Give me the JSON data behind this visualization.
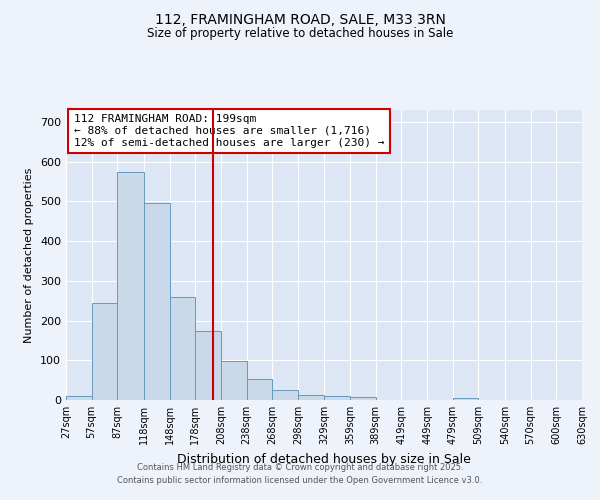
{
  "title_line1": "112, FRAMINGHAM ROAD, SALE, M33 3RN",
  "title_line2": "Size of property relative to detached houses in Sale",
  "xlabel": "Distribution of detached houses by size in Sale",
  "ylabel": "Number of detached properties",
  "bin_edges": [
    27,
    57,
    87,
    118,
    148,
    178,
    208,
    238,
    268,
    298,
    329,
    359,
    389,
    419,
    449,
    479,
    509,
    540,
    570,
    600,
    630
  ],
  "bar_heights": [
    10,
    243,
    575,
    497,
    260,
    173,
    97,
    52,
    25,
    12,
    10,
    7,
    0,
    0,
    0,
    5,
    0,
    0,
    0,
    0
  ],
  "bar_color": "#c9d9ea",
  "bar_edgecolor": "#6699bb",
  "bar_linewidth": 0.7,
  "vline_x": 199,
  "vline_color": "#cc0000",
  "vline_linewidth": 1.5,
  "annotation_text": "112 FRAMINGHAM ROAD: 199sqm\n← 88% of detached houses are smaller (1,716)\n12% of semi-detached houses are larger (230) →",
  "annotation_box_edgecolor": "#cc0000",
  "annotation_box_facecolor": "#ffffff",
  "ylim": [
    0,
    730
  ],
  "yticks": [
    0,
    100,
    200,
    300,
    400,
    500,
    600,
    700
  ],
  "plot_bg_color": "#dce6f5",
  "fig_bg_color": "#eef2fa",
  "grid_color": "#ffffff",
  "footer_line1": "Contains HM Land Registry data © Crown copyright and database right 2025.",
  "footer_line2": "Contains public sector information licensed under the Open Government Licence v3.0.",
  "tick_labels": [
    "27sqm",
    "57sqm",
    "87sqm",
    "118sqm",
    "148sqm",
    "178sqm",
    "208sqm",
    "238sqm",
    "268sqm",
    "298sqm",
    "329sqm",
    "359sqm",
    "389sqm",
    "419sqm",
    "449sqm",
    "479sqm",
    "509sqm",
    "540sqm",
    "570sqm",
    "600sqm",
    "630sqm"
  ]
}
